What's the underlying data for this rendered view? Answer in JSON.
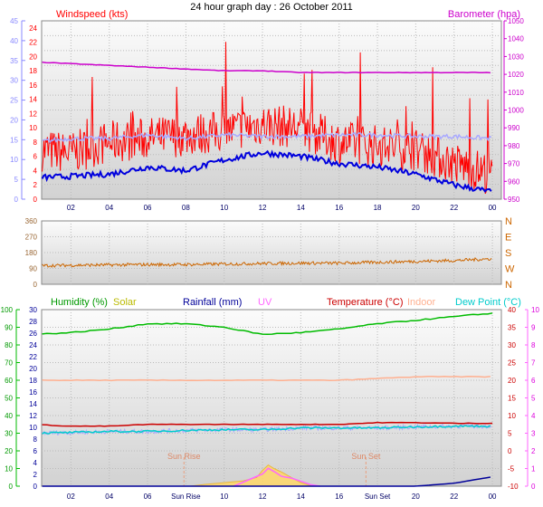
{
  "title": "24 hour graph day : 26 October 2011",
  "colors": {
    "wind": "#ff0000",
    "gust_avg": "#0000dd",
    "baro": "#cc00cc",
    "direction": "#cc6600",
    "humidity": "#00bb00",
    "solar": "#cccc00",
    "rain": "#000099",
    "uv": "#ff66ff",
    "temp": "#cc0000",
    "indoor": "#ffb090",
    "dew": "#00cccc",
    "leftaxis": "#8888ff"
  },
  "chart_data": [
    {
      "type": "line",
      "ylabel": "Windspeed (kts)",
      "y2label": "Barometer (hpa)",
      "x_ticks": [
        "02",
        "04",
        "06",
        "08",
        "10",
        "12",
        "14",
        "16",
        "18",
        "20",
        "22",
        "00"
      ],
      "y_ticks_outer": [
        "0",
        "5",
        "10",
        "15",
        "20",
        "25",
        "30",
        "35",
        "40",
        "45"
      ],
      "y_ticks": [
        "0",
        "2",
        "4",
        "6",
        "8",
        "10",
        "12",
        "14",
        "16",
        "18",
        "20",
        "22",
        "24"
      ],
      "y2_ticks": [
        "950",
        "960",
        "970",
        "980",
        "990",
        "1000",
        "1010",
        "1020",
        "1030",
        "1040",
        "1050"
      ],
      "ylim": [
        0,
        25
      ],
      "y2lim": [
        950,
        1050
      ],
      "series": [
        {
          "x": [
            0,
            2,
            4,
            6,
            8,
            10,
            12,
            14,
            16,
            18,
            20,
            22,
            24
          ],
          "values": [
            7,
            6.5,
            8,
            8.5,
            9,
            9.5,
            10.5,
            10,
            8,
            7.5,
            7,
            5,
            3.5
          ]
        },
        {
          "x": [
            0,
            2,
            4,
            6,
            8,
            10,
            12,
            14,
            16,
            18,
            20,
            22,
            24
          ],
          "values": [
            3,
            3.2,
            3.5,
            4.5,
            4,
            5.5,
            6.5,
            6,
            5,
            4.5,
            3.5,
            2,
            1
          ]
        },
        {
          "x": [
            0,
            2,
            4,
            6,
            8,
            10,
            12,
            14,
            16,
            18,
            20,
            22,
            24
          ],
          "values": [
            8,
            8.5,
            8.5,
            9,
            8.5,
            9,
            8.8,
            8.8,
            9,
            9,
            8.8,
            8.8,
            8.5
          ]
        },
        {
          "x": [
            0,
            2,
            4,
            6,
            8,
            10,
            12,
            14,
            16,
            18,
            20,
            22,
            24
          ],
          "values": [
            1027,
            1026,
            1025,
            1024,
            1023,
            1022,
            1022,
            1021,
            1021,
            1021,
            1021,
            1021,
            1021
          ]
        }
      ]
    },
    {
      "type": "line",
      "x_ticks": [],
      "y_ticks": [
        "0",
        "90",
        "180",
        "270",
        "360"
      ],
      "y2_ticks": [
        "N",
        "W",
        "S",
        "E",
        "N"
      ],
      "ylim": [
        0,
        360
      ],
      "series": [
        {
          "x": [
            0,
            2,
            4,
            6,
            8,
            10,
            12,
            14,
            16,
            18,
            20,
            22,
            24
          ],
          "values": [
            105,
            108,
            110,
            112,
            112,
            115,
            118,
            120,
            120,
            125,
            130,
            135,
            145
          ]
        }
      ]
    },
    {
      "type": "line",
      "legend": [
        "Humidity (%)",
        "Solar",
        "Rainfall (mm)",
        "UV",
        "Temperature (°C)",
        "Indoor",
        "Dew Point (°C)"
      ],
      "x_ticks": [
        "02",
        "04",
        "06",
        "Sun Rise",
        "10",
        "12",
        "14",
        "16",
        "Sun Set",
        "20",
        "22",
        "00"
      ],
      "y_ticks_humidity": [
        "0",
        "10",
        "20",
        "30",
        "40",
        "50",
        "60",
        "70",
        "80",
        "90",
        "100"
      ],
      "y_ticks_rain": [
        "0",
        "2",
        "4",
        "6",
        "8",
        "10",
        "12",
        "14",
        "16",
        "18",
        "20",
        "22",
        "24",
        "26",
        "28",
        "30"
      ],
      "y2_ticks_temp": [
        "-10",
        "-5",
        "0",
        "5",
        "10",
        "15",
        "20",
        "25",
        "30",
        "35",
        "40"
      ],
      "y3_ticks_uv": [
        "0",
        "1",
        "2",
        "3",
        "4",
        "5",
        "6",
        "7",
        "8",
        "9",
        "10"
      ],
      "annotations": [
        "Sun Rise",
        "Sun Set"
      ],
      "series": [
        {
          "x": [
            0,
            2,
            4,
            6,
            8,
            10,
            12,
            14,
            16,
            18,
            20,
            22,
            24
          ],
          "values": [
            86,
            87,
            89,
            92,
            92,
            90,
            86,
            87,
            89,
            92,
            94,
            96,
            98
          ]
        },
        {
          "x": [
            0,
            2,
            4,
            6,
            8,
            10,
            12,
            14,
            16,
            18,
            20,
            22,
            24
          ],
          "values": [
            34,
            35,
            33,
            32,
            32,
            32,
            33,
            33,
            34,
            34,
            35,
            36,
            36
          ]
        },
        {
          "x": [
            0,
            2,
            4,
            6,
            8,
            10,
            12,
            14,
            16,
            18,
            20,
            22,
            24
          ],
          "values": [
            7.5,
            7,
            7,
            7.5,
            7.5,
            7.5,
            7.5,
            7.5,
            7.5,
            8,
            8,
            7.8,
            7.8
          ]
        },
        {
          "x": [
            0,
            2,
            4,
            6,
            8,
            10,
            12,
            14,
            16,
            18,
            20,
            22,
            24
          ],
          "values": [
            20,
            20,
            20,
            20,
            20,
            20,
            20,
            20,
            20,
            20.5,
            21,
            21,
            21
          ]
        },
        {
          "x": [
            0,
            2,
            4,
            6,
            8,
            10,
            12,
            14,
            16,
            18,
            20,
            22,
            24
          ],
          "values": [
            5,
            5.2,
            5.5,
            5.5,
            5.8,
            6,
            6,
            6.5,
            6.5,
            6.5,
            6.8,
            7,
            7
          ]
        },
        {
          "x": [
            0,
            2,
            4,
            6,
            8,
            10,
            12,
            14,
            16,
            18,
            20,
            22,
            24
          ],
          "values": [
            0,
            0,
            0,
            0,
            0,
            0,
            0,
            0,
            0,
            0,
            0,
            0.5,
            1.6
          ]
        }
      ]
    }
  ]
}
